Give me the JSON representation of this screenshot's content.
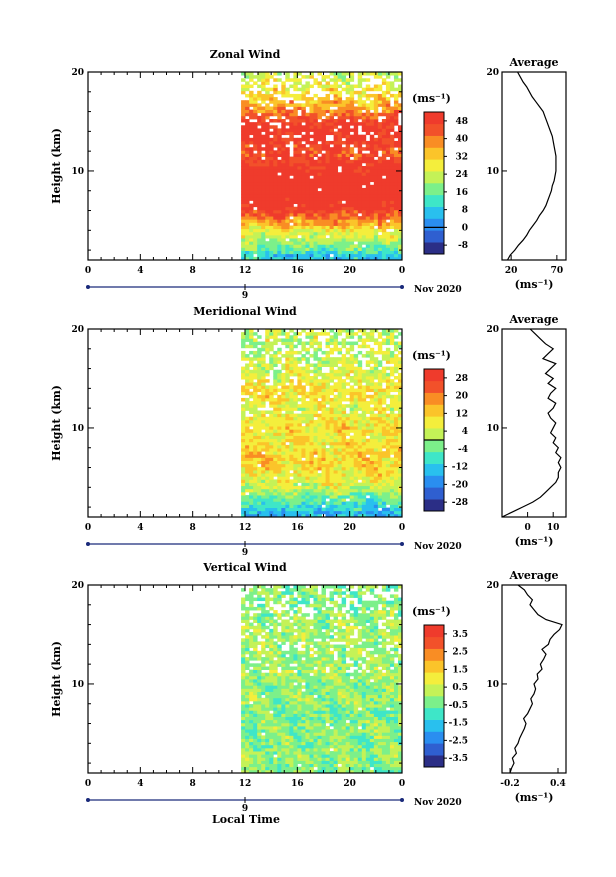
{
  "colors": {
    "colormap": [
      "#2b2e86",
      "#2f5fd0",
      "#2a8ef0",
      "#29c0ee",
      "#3ee6c8",
      "#7cf08a",
      "#c4f257",
      "#f4ee3c",
      "#fbc42a",
      "#f98d24",
      "#f2512a",
      "#ef3b2c"
    ],
    "line": "#000000",
    "background": "#ffffff"
  },
  "labels": {
    "ylabel": "Height (km)",
    "units": "(ms⁻¹)",
    "units_profile": "(ms⁻¹)",
    "average_title": "Average",
    "day_label": "9",
    "month_year": "Nov 2020",
    "xlabel": "Local Time"
  },
  "chart_data": [
    {
      "type": "heatmap",
      "title": "Zonal Wind",
      "x_ticks": [
        "0",
        "4",
        "8",
        "12",
        "16",
        "20",
        "0"
      ],
      "xlim": [
        0,
        24
      ],
      "y_ticks": [
        "10",
        "20"
      ],
      "ylim": [
        1,
        20
      ],
      "data_start_hour": 11.7,
      "colorbar_ticks": [
        "-8",
        "0",
        "8",
        "16",
        "24",
        "32",
        "40",
        "48"
      ],
      "colorbar_range": [
        -12,
        52
      ],
      "zero_line": 0,
      "field": {
        "heights": [
          1.5,
          2,
          3,
          4,
          5,
          6,
          7,
          8,
          9,
          10,
          11,
          12,
          13,
          14,
          15,
          16,
          17,
          18,
          19,
          20
        ],
        "values": [
          8,
          14,
          22,
          28,
          38,
          48,
          54,
          56,
          55,
          52,
          48,
          44,
          50,
          52,
          48,
          40,
          34,
          30,
          26,
          24
        ]
      },
      "profile": {
        "xlim": [
          10,
          80
        ],
        "x_ticks": [
          "20",
          "70"
        ],
        "height": [
          1,
          1.5,
          2,
          2.5,
          3,
          3.5,
          4,
          4.5,
          5,
          5.5,
          6,
          6.5,
          7,
          7.5,
          8,
          8.5,
          9,
          9.5,
          10,
          10.5,
          11,
          11.5,
          12,
          12.5,
          13,
          13.5,
          14,
          14.5,
          15,
          15.5,
          16,
          16.5,
          17,
          17.5,
          18,
          18.5,
          19,
          19.5,
          20
        ],
        "value": [
          16,
          19,
          24,
          28,
          33,
          37,
          40,
          44,
          48,
          51,
          55,
          58,
          60,
          62,
          64,
          65,
          67,
          68,
          69,
          69,
          69,
          69,
          68,
          67,
          66,
          65,
          63,
          61,
          59,
          57,
          55,
          51,
          47,
          43,
          40,
          37,
          33,
          30,
          27
        ]
      }
    },
    {
      "type": "heatmap",
      "title": "Meridional Wind",
      "x_ticks": [
        "0",
        "4",
        "8",
        "12",
        "16",
        "20",
        "0"
      ],
      "xlim": [
        0,
        24
      ],
      "y_ticks": [
        "10",
        "20"
      ],
      "ylim": [
        1,
        20
      ],
      "data_start_hour": 11.7,
      "colorbar_ticks": [
        "-28",
        "-20",
        "-12",
        "-4",
        "4",
        "12",
        "20",
        "28"
      ],
      "colorbar_range": [
        -32,
        32
      ],
      "zero_line": 0,
      "field": {
        "heights": [
          1.5,
          2,
          3,
          4,
          5,
          6,
          7,
          8,
          9,
          10,
          11,
          12,
          13,
          14,
          15,
          16,
          17,
          18,
          19,
          20
        ],
        "values": [
          -14,
          -10,
          -4,
          4,
          8,
          10,
          12,
          10,
          8,
          10,
          8,
          6,
          8,
          10,
          6,
          4,
          4,
          2,
          4,
          2
        ]
      },
      "profile": {
        "xlim": [
          -10,
          15
        ],
        "x_ticks": [
          "0",
          "10"
        ],
        "height": [
          1,
          1.5,
          2,
          2.5,
          3,
          3.5,
          4,
          4.5,
          5,
          5.5,
          6,
          6.5,
          7,
          7.5,
          8,
          8.5,
          9,
          9.5,
          10,
          10.5,
          11,
          11.5,
          12,
          12.5,
          13,
          13.5,
          14,
          14.5,
          15,
          15.5,
          16,
          16.5,
          17,
          17.5,
          18,
          18.5,
          19,
          19.5,
          20
        ],
        "value": [
          -10,
          -6,
          -2,
          2,
          5,
          7,
          9,
          11,
          12,
          12,
          13,
          12,
          13,
          11,
          12,
          10,
          11,
          9,
          10,
          11,
          9,
          8,
          10,
          11,
          8,
          9,
          11,
          8,
          10,
          7,
          9,
          11,
          6,
          8,
          10,
          7,
          5,
          3,
          1
        ]
      }
    },
    {
      "type": "heatmap",
      "title": "Vertical Wind",
      "x_ticks": [
        "0",
        "4",
        "8",
        "12",
        "16",
        "20",
        "0"
      ],
      "xlim": [
        0,
        24
      ],
      "y_ticks": [
        "10",
        "20"
      ],
      "ylim": [
        1,
        20
      ],
      "data_start_hour": 11.7,
      "colorbar_ticks": [
        "-3.5",
        "-2.5",
        "-1.5",
        "-0.5",
        "0.5",
        "1.5",
        "2.5",
        "3.5"
      ],
      "colorbar_range": [
        -4,
        4
      ],
      "zero_line": null,
      "field": {
        "heights": [
          1.5,
          2,
          3,
          4,
          5,
          6,
          7,
          8,
          9,
          10,
          11,
          12,
          13,
          14,
          15,
          16,
          17,
          18,
          19,
          20
        ],
        "values": [
          -0.3,
          -0.2,
          0,
          -0.3,
          -0.1,
          -0.2,
          -0.4,
          -0.1,
          0,
          -0.2,
          0.1,
          -0.1,
          0.1,
          0,
          0.2,
          0,
          -0.1,
          -0.2,
          -0.3,
          -0.2
        ]
      },
      "profile": {
        "xlim": [
          -0.3,
          0.5
        ],
        "x_ticks": [
          "-0.2",
          "0.4"
        ],
        "height": [
          1,
          1.5,
          2,
          2.5,
          3,
          3.5,
          4,
          4.5,
          5,
          5.5,
          6,
          6.5,
          7,
          7.5,
          8,
          8.5,
          9,
          9.5,
          10,
          10.5,
          11,
          11.5,
          12,
          12.5,
          13,
          13.5,
          14,
          14.5,
          15,
          15.5,
          16,
          16.5,
          17,
          17.5,
          18,
          18.5,
          19,
          19.5,
          20
        ],
        "value": [
          -0.2,
          -0.18,
          -0.15,
          -0.17,
          -0.12,
          -0.14,
          -0.1,
          -0.08,
          -0.05,
          -0.02,
          0.0,
          -0.03,
          0.02,
          0.05,
          0.08,
          0.06,
          0.1,
          0.12,
          0.1,
          0.15,
          0.14,
          0.2,
          0.18,
          0.22,
          0.25,
          0.2,
          0.28,
          0.3,
          0.35,
          0.42,
          0.45,
          0.25,
          0.15,
          0.1,
          0.05,
          0.08,
          0.02,
          -0.02,
          -0.1
        ]
      }
    }
  ]
}
